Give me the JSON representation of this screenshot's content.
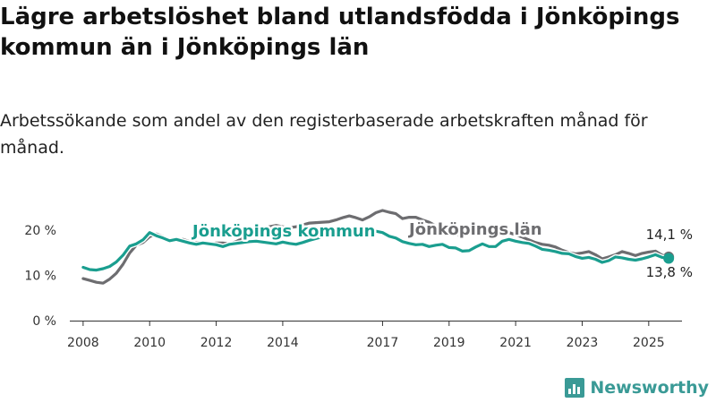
{
  "title": "Lägre arbetslöshet bland utlandsfödda i Jönköpings kommun än i Jönköpings län",
  "subtitle": "Arbetssökande som andel av den registerbaserade arbetskraften månad för månad.",
  "brand": {
    "name": "Newsworthy",
    "color": "#3a9a96",
    "icon": "bar-chart-icon"
  },
  "chart_data": {
    "type": "line",
    "ylim": [
      0,
      25
    ],
    "xlim": [
      2007.6,
      2026.0
    ],
    "y_ticks": [
      {
        "value": 0,
        "label": "0 %"
      },
      {
        "value": 10,
        "label": "10 %"
      },
      {
        "value": 20,
        "label": "20 %"
      }
    ],
    "x_ticks": [
      {
        "value": 2008,
        "label": "2008"
      },
      {
        "value": 2010,
        "label": "2010"
      },
      {
        "value": 2012,
        "label": "2012"
      },
      {
        "value": 2014,
        "label": "2014"
      },
      {
        "value": 2017,
        "label": "2017"
      },
      {
        "value": 2019,
        "label": "2019"
      },
      {
        "value": 2021,
        "label": "2021"
      },
      {
        "value": 2023,
        "label": "2023"
      },
      {
        "value": 2025,
        "label": "2025"
      }
    ],
    "grid": false,
    "series": [
      {
        "name": "Jönköpings län",
        "color": "#6d6d70",
        "end_label": "14,1 %",
        "x": [
          2008.0,
          2008.2,
          2008.4,
          2008.6,
          2008.8,
          2009.0,
          2009.2,
          2009.4,
          2009.6,
          2009.8,
          2010.0,
          2010.2,
          2010.4,
          2010.6,
          2010.8,
          2011.0,
          2011.2,
          2011.4,
          2011.6,
          2011.8,
          2012.0,
          2012.2,
          2012.4,
          2012.6,
          2012.8,
          2013.0,
          2013.2,
          2013.4,
          2013.6,
          2013.8,
          2014.0,
          2014.2,
          2014.4,
          2014.6,
          2014.8,
          2015.0,
          2015.2,
          2015.4,
          2015.6,
          2015.8,
          2016.0,
          2016.2,
          2016.4,
          2016.6,
          2016.8,
          2017.0,
          2017.2,
          2017.4,
          2017.6,
          2017.8,
          2018.0,
          2018.2,
          2018.4,
          2018.6,
          2018.8,
          2019.0,
          2019.2,
          2019.4,
          2019.6,
          2019.8,
          2020.0,
          2020.2,
          2020.4,
          2020.6,
          2020.8,
          2021.0,
          2021.2,
          2021.4,
          2021.6,
          2021.8,
          2022.0,
          2022.2,
          2022.4,
          2022.6,
          2022.8,
          2023.0,
          2023.2,
          2023.4,
          2023.6,
          2023.8,
          2024.0,
          2024.2,
          2024.4,
          2024.6,
          2024.8,
          2025.0,
          2025.2,
          2025.4,
          2025.6
        ],
        "values": [
          9.3,
          8.9,
          8.5,
          8.3,
          9.2,
          10.5,
          12.5,
          15.0,
          16.7,
          17.3,
          18.6,
          19.2,
          18.6,
          17.7,
          17.7,
          18.0,
          17.5,
          17.3,
          17.3,
          17.0,
          17.2,
          17.2,
          17.0,
          17.5,
          18.3,
          19.2,
          19.8,
          20.3,
          20.8,
          21.1,
          20.8,
          20.6,
          20.8,
          21.2,
          21.6,
          21.7,
          21.8,
          21.9,
          22.3,
          22.8,
          23.2,
          22.8,
          22.3,
          23.0,
          23.9,
          24.4,
          24.0,
          23.7,
          22.6,
          22.9,
          22.9,
          22.3,
          21.8,
          21.0,
          20.5,
          19.8,
          19.1,
          18.8,
          19.5,
          20.3,
          20.8,
          20.5,
          20.1,
          19.8,
          19.5,
          19.0,
          18.5,
          17.9,
          17.3,
          16.9,
          16.7,
          16.3,
          15.6,
          15.1,
          14.8,
          15.0,
          15.3,
          14.6,
          13.7,
          14.1,
          14.6,
          15.3,
          14.9,
          14.4,
          14.9,
          15.2,
          15.4,
          14.5,
          14.1
        ]
      },
      {
        "name": "Jönköpings kommun",
        "color": "#1a9e8f",
        "end_label": "13,8 %",
        "x": [
          2008.0,
          2008.2,
          2008.4,
          2008.6,
          2008.8,
          2009.0,
          2009.2,
          2009.4,
          2009.6,
          2009.8,
          2010.0,
          2010.2,
          2010.4,
          2010.6,
          2010.8,
          2011.0,
          2011.2,
          2011.4,
          2011.6,
          2011.8,
          2012.0,
          2012.2,
          2012.4,
          2012.6,
          2012.8,
          2013.0,
          2013.2,
          2013.4,
          2013.6,
          2013.8,
          2014.0,
          2014.2,
          2014.4,
          2014.6,
          2014.8,
          2015.0,
          2015.2,
          2015.4,
          2015.6,
          2015.8,
          2016.0,
          2016.2,
          2016.4,
          2016.6,
          2016.8,
          2017.0,
          2017.2,
          2017.4,
          2017.6,
          2017.8,
          2018.0,
          2018.2,
          2018.4,
          2018.6,
          2018.8,
          2019.0,
          2019.2,
          2019.4,
          2019.6,
          2019.8,
          2020.0,
          2020.2,
          2020.4,
          2020.6,
          2020.8,
          2021.0,
          2021.2,
          2021.4,
          2021.6,
          2021.8,
          2022.0,
          2022.2,
          2022.4,
          2022.6,
          2022.8,
          2023.0,
          2023.2,
          2023.4,
          2023.6,
          2023.8,
          2024.0,
          2024.2,
          2024.4,
          2024.6,
          2024.8,
          2025.0,
          2025.2,
          2025.4,
          2025.6
        ],
        "values": [
          11.8,
          11.3,
          11.2,
          11.5,
          12.0,
          13.0,
          14.5,
          16.5,
          17.0,
          17.9,
          19.5,
          18.8,
          18.3,
          17.7,
          18.0,
          17.6,
          17.2,
          16.9,
          17.2,
          17.0,
          16.8,
          16.4,
          16.9,
          17.1,
          17.3,
          17.5,
          17.6,
          17.4,
          17.2,
          17.0,
          17.4,
          17.1,
          16.9,
          17.3,
          17.8,
          18.2,
          18.6,
          19.0,
          19.3,
          19.6,
          19.8,
          19.6,
          19.3,
          19.4,
          19.8,
          19.5,
          18.7,
          18.3,
          17.5,
          17.1,
          16.8,
          16.9,
          16.4,
          16.7,
          16.9,
          16.2,
          16.1,
          15.4,
          15.5,
          16.3,
          17.0,
          16.4,
          16.4,
          17.6,
          18.0,
          17.6,
          17.3,
          17.1,
          16.5,
          15.8,
          15.6,
          15.3,
          14.9,
          14.8,
          14.2,
          13.8,
          14.0,
          13.6,
          12.9,
          13.3,
          14.1,
          13.9,
          13.6,
          13.4,
          13.7,
          14.1,
          14.6,
          14.0,
          13.8
        ]
      }
    ]
  }
}
